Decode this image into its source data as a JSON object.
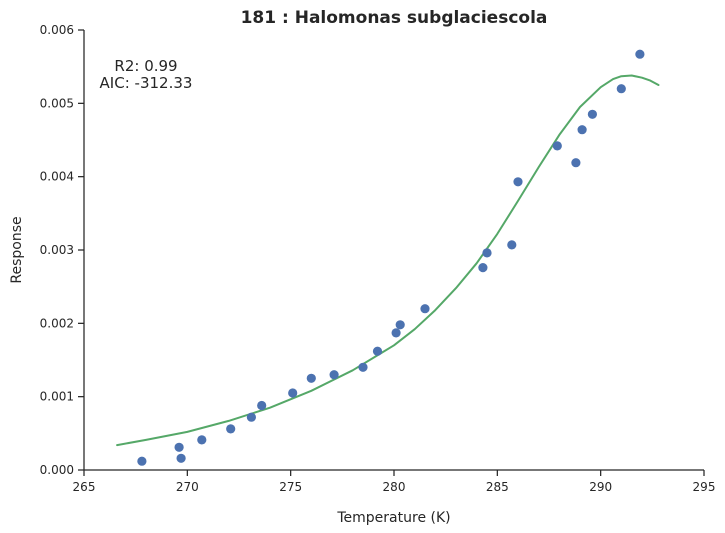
{
  "chart_data": {
    "type": "scatter",
    "title": "181 : Halomonas subglaciescola",
    "xlabel": "Temperature (K)",
    "ylabel": "Response",
    "xlim": [
      265,
      295
    ],
    "ylim": [
      0.0,
      0.006
    ],
    "xticks": [
      "265",
      "270",
      "275",
      "280",
      "285",
      "290",
      "295"
    ],
    "yticks": [
      "0.000",
      "0.001",
      "0.002",
      "0.003",
      "0.004",
      "0.005",
      "0.006"
    ],
    "grid": false,
    "annotations": [
      "R2: 0.99",
      "AIC: -312.33"
    ],
    "colors": {
      "points": "#4c72b0",
      "fit": "#55a868",
      "axis": "#262626"
    },
    "series": [
      {
        "kind": "points",
        "x": [
          267.8,
          269.6,
          269.7,
          270.7,
          272.1,
          273.1,
          273.6,
          275.1,
          276.0,
          277.1,
          278.5,
          279.2,
          280.1,
          280.3,
          281.5,
          284.3,
          284.5,
          285.7,
          286.0,
          287.9,
          288.8,
          289.1,
          289.6,
          291.0,
          291.9
        ],
        "y": [
          0.00012,
          0.00031,
          0.00016,
          0.00041,
          0.00056,
          0.00072,
          0.00088,
          0.00105,
          0.00125,
          0.0013,
          0.0014,
          0.00162,
          0.00187,
          0.00198,
          0.0022,
          0.00276,
          0.00296,
          0.00307,
          0.00393,
          0.00442,
          0.00419,
          0.00464,
          0.00485,
          0.0052,
          0.00567
        ]
      },
      {
        "kind": "line",
        "x": [
          266.6,
          268.0,
          270.0,
          272.0,
          274.0,
          276.0,
          278.0,
          280.0,
          281.0,
          282.0,
          283.0,
          284.0,
          285.0,
          286.0,
          287.0,
          288.0,
          289.0,
          290.0,
          290.6,
          291.0,
          291.5,
          292.0,
          292.4,
          292.8
        ],
        "y": [
          0.00034,
          0.00041,
          0.00052,
          0.00067,
          0.00085,
          0.00108,
          0.00136,
          0.0017,
          0.00192,
          0.00218,
          0.00248,
          0.00282,
          0.00322,
          0.00367,
          0.00413,
          0.00457,
          0.00495,
          0.00522,
          0.00533,
          0.00537,
          0.00538,
          0.00535,
          0.00531,
          0.00525
        ]
      }
    ]
  }
}
